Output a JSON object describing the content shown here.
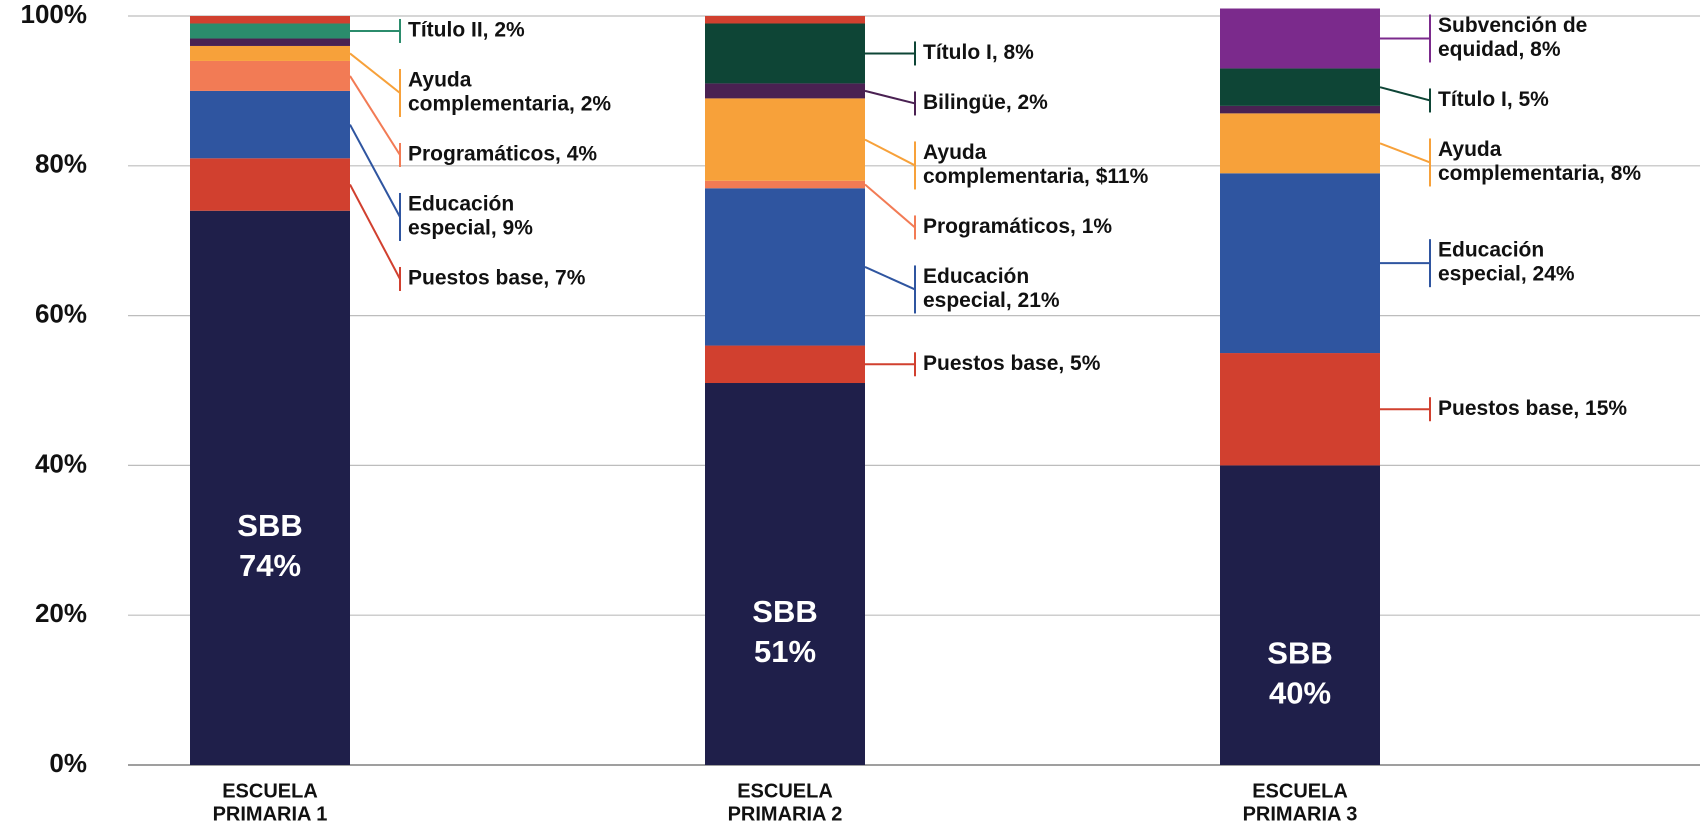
{
  "chart_data": {
    "type": "stacked_bar",
    "ylim": [
      0,
      100
    ],
    "grid": true,
    "yticks": [
      {
        "value": 0,
        "label": "0%"
      },
      {
        "value": 20,
        "label": "20%"
      },
      {
        "value": 40,
        "label": "40%"
      },
      {
        "value": 60,
        "label": "60%"
      },
      {
        "value": 80,
        "label": "80%"
      },
      {
        "value": 100,
        "label": "100%"
      }
    ],
    "bars": [
      {
        "category": [
          "ESCUELA",
          "PRIMARIA 1"
        ],
        "segments": [
          {
            "value": 74,
            "color": "#1f1f4a",
            "inner_label": [
              "SBB",
              "74%"
            ]
          },
          {
            "value": 7,
            "color": "#d1402f",
            "label_lines": [
              "Puestos base, 7%"
            ]
          },
          {
            "value": 9,
            "color": "#2f55a0",
            "label_lines": [
              "Educación",
              "especial, 9%"
            ]
          },
          {
            "value": 4,
            "color": "#f27b55",
            "label_lines": [
              "Programáticos, 4%"
            ]
          },
          {
            "value": 2,
            "color": "#f7a13a",
            "label_lines": [
              "Ayuda",
              "complementaria, 2%"
            ]
          },
          {
            "value": 1,
            "color": "#4a2152"
          },
          {
            "value": 2,
            "color": "#2b8c6c",
            "label_lines": [
              "Título II, 2%"
            ]
          },
          {
            "value": 1,
            "color": "#d1402f"
          }
        ]
      },
      {
        "category": [
          "ESCUELA",
          "PRIMARIA 2"
        ],
        "segments": [
          {
            "value": 51,
            "color": "#1f1f4a",
            "inner_label": [
              "SBB",
              "51%"
            ]
          },
          {
            "value": 5,
            "color": "#d1402f",
            "label_lines": [
              "Puestos base, 5%"
            ]
          },
          {
            "value": 21,
            "color": "#2f55a0",
            "label_lines": [
              "Educación",
              "especial, 21%"
            ]
          },
          {
            "value": 1,
            "color": "#f27b55",
            "label_lines": [
              "Programáticos, 1%"
            ]
          },
          {
            "value": 11,
            "color": "#f7a13a",
            "label_lines": [
              "Ayuda",
              "complementaria, $11%"
            ]
          },
          {
            "value": 2,
            "color": "#4a2152",
            "label_lines": [
              "Bilingüe, 2%"
            ]
          },
          {
            "value": 8,
            "color": "#0e4536",
            "label_lines": [
              "Título I, 8%"
            ]
          },
          {
            "value": 1,
            "color": "#d1402f"
          }
        ]
      },
      {
        "category": [
          "ESCUELA",
          "PRIMARIA 3"
        ],
        "segments": [
          {
            "value": 40,
            "color": "#1f1f4a",
            "inner_label": [
              "SBB",
              "40%"
            ]
          },
          {
            "value": 15,
            "color": "#d1402f",
            "label_lines": [
              "Puestos base, 15%"
            ]
          },
          {
            "value": 24,
            "color": "#2f55a0",
            "label_lines": [
              "Educación",
              "especial, 24%"
            ]
          },
          {
            "value": 8,
            "color": "#f7a13a",
            "label_lines": [
              "Ayuda",
              "complementaria, 8%"
            ]
          },
          {
            "value": 1,
            "color": "#4a2152"
          },
          {
            "value": 5,
            "color": "#0e4536",
            "label_lines": [
              "Título I, 5%"
            ]
          },
          {
            "value": 8,
            "color": "#7b2a8c",
            "label_lines": [
              "Subvención de",
              "equidad, 8%"
            ]
          }
        ]
      }
    ]
  }
}
